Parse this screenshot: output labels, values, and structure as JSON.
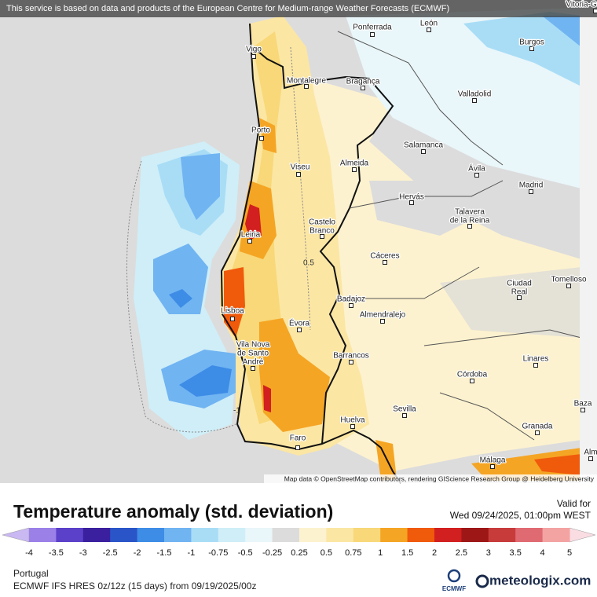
{
  "banner": "This service is based on data and products of the European Centre for Medium-range Weather Forecasts (ECMWF)",
  "map": {
    "places": [
      {
        "lines": [
          "Vitoria-G"
        ]
      },
      {
        "lines": [
          "Ponferrada"
        ]
      },
      {
        "lines": [
          "León"
        ]
      },
      {
        "lines": [
          "Vigo"
        ]
      },
      {
        "lines": [
          "Burgos"
        ]
      },
      {
        "lines": [
          "Montalegre"
        ]
      },
      {
        "lines": [
          "Bragança"
        ]
      },
      {
        "lines": [
          "Valladolid"
        ]
      },
      {
        "lines": [
          "Porto"
        ]
      },
      {
        "lines": [
          "Salamanca"
        ]
      },
      {
        "lines": [
          "Viseu"
        ]
      },
      {
        "lines": [
          "Almeida"
        ]
      },
      {
        "lines": [
          "Ávila"
        ]
      },
      {
        "lines": [
          "Madrid"
        ]
      },
      {
        "lines": [
          "Hervás"
        ]
      },
      {
        "lines": [
          "Talavera",
          "de la Reina"
        ]
      },
      {
        "lines": [
          "Castelo",
          "Branco"
        ]
      },
      {
        "lines": [
          "Leiria"
        ]
      },
      {
        "lines": [
          "Cáceres"
        ]
      },
      {
        "lines": [
          "Ciudad",
          "Real"
        ]
      },
      {
        "lines": [
          "Tomelloso"
        ]
      },
      {
        "lines": [
          "Badajoz"
        ]
      },
      {
        "lines": [
          "Almendralejo"
        ]
      },
      {
        "lines": [
          "Lisboa"
        ]
      },
      {
        "lines": [
          "Évora"
        ]
      },
      {
        "lines": [
          "Vila Nova",
          "de Santo",
          "André"
        ]
      },
      {
        "lines": [
          "Barrancos"
        ]
      },
      {
        "lines": [
          "Linares"
        ]
      },
      {
        "lines": [
          "Córdoba"
        ]
      },
      {
        "lines": [
          "Baza"
        ]
      },
      {
        "lines": [
          "Sevilla"
        ]
      },
      {
        "lines": [
          "Huelva"
        ]
      },
      {
        "lines": [
          "Granada"
        ]
      },
      {
        "lines": [
          "Faro"
        ]
      },
      {
        "lines": [
          "Málaga"
        ]
      },
      {
        "lines": [
          "Alm"
        ]
      }
    ],
    "contour_labels": [
      "0.5",
      "-1"
    ],
    "attribution": "Map data © OpenStreetMap contributors, rendering GIScience Research Group @ Heidelberg University"
  },
  "legend": {
    "title": "Temperature anomaly (std. deviation)",
    "valid_label": "Valid for",
    "valid_time": "Wed 09/24/2025, 01:00pm WEST",
    "ticks": [
      "-4",
      "-3.5",
      "-3",
      "-2.5",
      "-2",
      "-1.5",
      "-1",
      "-0.75",
      "-0.5",
      "-0.25",
      "0.25",
      "0.5",
      "0.75",
      "1",
      "1.5",
      "2",
      "2.5",
      "3",
      "3.5",
      "4",
      "5"
    ],
    "colors": [
      "#9b80e8",
      "#5b40c9",
      "#3a1f9e",
      "#2a55c8",
      "#3d8ce6",
      "#70b4f2",
      "#a9ddf6",
      "#cfeef8",
      "#e9f6fa",
      "#dcdcdc",
      "#fdf2cf",
      "#fbe6a4",
      "#f8d878",
      "#f5a524",
      "#f05a0b",
      "#d21f1f",
      "#9e1717",
      "#c73b3b",
      "#e06a72",
      "#f4a3a3"
    ],
    "under_color": "#c9b8f2",
    "over_color": "#f9dde3"
  },
  "footer": {
    "region": "Portugal",
    "model": "ECMWF IFS HRES 0z/12z (15 days) from  09/19/2025/00z",
    "ecmwf_logo": "ECMWF",
    "brand": "meteologix.com"
  }
}
